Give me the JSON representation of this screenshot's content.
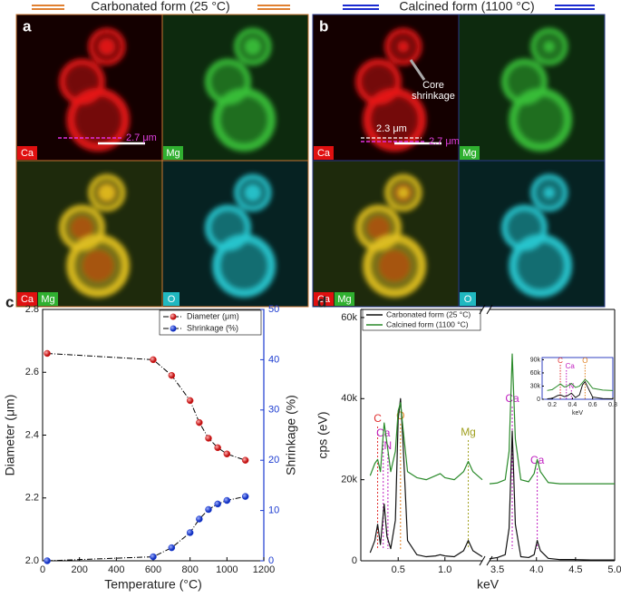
{
  "header": {
    "left": "Carbonated form (25 °C)",
    "right": "Calcined form (1100 °C)"
  },
  "panel_a": {
    "letter": "a",
    "labels": [
      "Ca",
      "Mg",
      "Ca",
      "Mg",
      "O"
    ],
    "scale_label": "2.7 μm"
  },
  "panel_b": {
    "letter": "b",
    "labels": [
      "Ca",
      "Mg",
      "Ca",
      "Mg",
      "O"
    ],
    "annotation": [
      "Core",
      "shrinkage"
    ],
    "scale_labels": [
      "2.3 μm",
      "2.7 μm"
    ]
  },
  "chart_data": [
    {
      "type": "line",
      "panel_label": "c",
      "xlabel": "Temperature (°C)",
      "ylabel": "Diameter (μm)",
      "y2label": "Shrinkage (%)",
      "x": [
        25,
        600,
        700,
        800,
        850,
        900,
        950,
        1000,
        1100
      ],
      "series": [
        {
          "name": "Diameter (μm)",
          "color": "#d42020",
          "values": [
            2.66,
            2.64,
            2.59,
            2.51,
            2.44,
            2.39,
            2.36,
            2.34,
            2.32
          ]
        },
        {
          "name": "Shrinkage (%)",
          "color": "#1a3ad0",
          "axis": "y2",
          "values": [
            0,
            0.8,
            2.6,
            5.6,
            8.3,
            10.2,
            11.3,
            12,
            12.8
          ]
        }
      ],
      "line_color": "#000000",
      "xlim": [
        0,
        1200
      ],
      "xticks": [
        0,
        200,
        400,
        600,
        800,
        1000,
        1200
      ],
      "ylim": [
        2.0,
        2.8
      ],
      "yticks": [
        {
          "value": 2.0,
          "label": "2.0"
        },
        2.2,
        2.4,
        2.6,
        2.8
      ],
      "y2lim": [
        0,
        50
      ],
      "y2ticks": [
        0,
        10,
        20,
        30,
        40,
        50
      ],
      "legend": "top-right"
    },
    {
      "type": "line",
      "panel_label": "d",
      "xlabel": "keV",
      "ylabel": "cps (eV)",
      "x": [
        0.2,
        0.25,
        0.28,
        0.31,
        0.35,
        0.38,
        0.42,
        0.47,
        0.5,
        0.525,
        0.55,
        0.6,
        0.7,
        0.8,
        0.9,
        0.95,
        1.0,
        1.1,
        1.2,
        1.25,
        1.3,
        1.4,
        null,
        3.4,
        3.5,
        3.6,
        3.65,
        3.69,
        3.73,
        3.8,
        3.9,
        3.97,
        4.01,
        4.05,
        4.15,
        4.3,
        4.5,
        4.7,
        5.0
      ],
      "series": [
        {
          "name": "Carbonated form (25 °C)",
          "color": "#111111",
          "values": [
            2000,
            5000,
            9000,
            4000,
            14000,
            6000,
            3000,
            10000,
            35000,
            40000,
            30000,
            5000,
            1500,
            1000,
            1200,
            1500,
            1200,
            1000,
            2500,
            5000,
            2500,
            1000,
            null,
            500,
            800,
            1500,
            8000,
            32000,
            9000,
            1000,
            800,
            1500,
            5000,
            2500,
            600,
            300,
            300,
            200,
            200
          ]
        },
        {
          "name": "Calcined form (1100 °C)",
          "color": "#2a8a2a",
          "values": [
            21000,
            24000,
            25000,
            22000,
            34000,
            29000,
            22000,
            27000,
            37000,
            39000,
            33000,
            22000,
            20500,
            20000,
            21000,
            21500,
            20500,
            20000,
            22000,
            24500,
            22000,
            20000,
            null,
            19000,
            19200,
            20000,
            27000,
            51000,
            30000,
            20000,
            19500,
            21500,
            25000,
            22000,
            19300,
            19000,
            19000,
            19000,
            19000
          ]
        }
      ],
      "xlim": [
        0.1,
        5.0
      ],
      "x_break": [
        1.4,
        3.4
      ],
      "xticks": [
        0.5,
        {
          "value": 1.0,
          "label": "1.0"
        },
        3.5,
        {
          "value": 4.0,
          "label": "4.0"
        },
        4.5,
        {
          "value": 5.0,
          "label": "5.0"
        }
      ],
      "ylim": [
        0,
        62000
      ],
      "yticks": [
        0,
        {
          "value": 20000,
          "label": "20k"
        },
        {
          "value": 40000,
          "label": "40k"
        },
        {
          "value": 60000,
          "label": "60k"
        }
      ],
      "legend": "top-left",
      "annotations": [
        {
          "text": "C",
          "x": 0.28,
          "color": "#e03030"
        },
        {
          "text": "Ca",
          "x": 0.34,
          "color": "#c020c0"
        },
        {
          "text": "N",
          "x": 0.39,
          "color": "#c020c0"
        },
        {
          "text": "O",
          "x": 0.525,
          "color": "#e08020"
        },
        {
          "text": "Mg",
          "x": 1.25,
          "color": "#a0a020"
        },
        {
          "text": "Ca",
          "x": 3.69,
          "color": "#c020c0"
        },
        {
          "text": "Ca",
          "x": 4.01,
          "color": "#c020c0"
        }
      ]
    },
    {
      "type": "line",
      "xlabel": "keV",
      "x": [
        0.15,
        0.2,
        0.25,
        0.28,
        0.32,
        0.35,
        0.39,
        0.43,
        0.47,
        0.5,
        0.525,
        0.55,
        0.6,
        0.7,
        0.8
      ],
      "series": [
        {
          "color": "#111111",
          "values": [
            1000,
            2000,
            8000,
            10000,
            6000,
            8000,
            14000,
            4000,
            10000,
            33000,
            40000,
            28000,
            5000,
            1500,
            1000
          ]
        },
        {
          "color": "#2a8a2a",
          "values": [
            20000,
            22000,
            30000,
            35000,
            28000,
            30000,
            36000,
            27000,
            30000,
            38000,
            45000,
            40000,
            25000,
            21000,
            20000
          ]
        }
      ],
      "xlim": [
        0.1,
        0.8
      ],
      "xticks": [
        0.2,
        0.4,
        0.6,
        0.8
      ],
      "ylim": [
        0,
        95000
      ],
      "yticks": [
        0,
        {
          "value": 30000,
          "label": "30k"
        },
        {
          "value": 60000,
          "label": "60k"
        },
        {
          "value": 90000,
          "label": "90k"
        }
      ],
      "annotations": [
        {
          "text": "C",
          "x": 0.28,
          "color": "#e03030"
        },
        {
          "text": "Ca",
          "x": 0.34,
          "color": "#c020c0"
        },
        {
          "text": "N",
          "x": 0.39,
          "color": "#c020c0"
        },
        {
          "text": "O",
          "x": 0.525,
          "color": "#e08020"
        }
      ]
    }
  ]
}
